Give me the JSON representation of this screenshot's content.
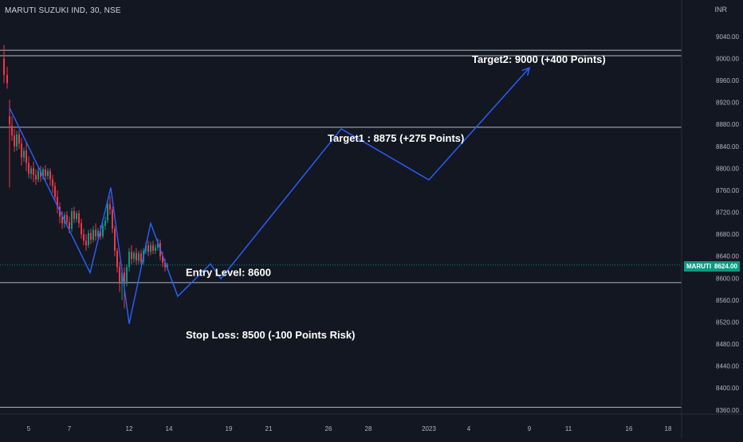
{
  "header": {
    "symbol_title": "MARUTI SUZUKI IND, 30, NSE",
    "currency": "INR"
  },
  "price_tag": {
    "ticker": "MARUTI",
    "value": "8624.00"
  },
  "colors": {
    "background": "#131722",
    "grid_line": "#d1d4dc",
    "projection_line": "#2962ff",
    "candle_up": "#089981",
    "candle_down": "#f23645",
    "axis_text": "#b2b5be",
    "current_price": "#089981"
  },
  "chart_data": {
    "type": "candlestick",
    "title": "MARUTI SUZUKI IND, 30, NSE",
    "y_axis": {
      "ticks": [
        9040,
        9000,
        8960,
        8920,
        8880,
        8840,
        8800,
        8760,
        8720,
        8680,
        8640,
        8600,
        8560,
        8520,
        8480,
        8440,
        8400,
        8360
      ],
      "tick_labels": [
        "9040.00",
        "9000.00",
        "8960.00",
        "8920.00",
        "8880.00",
        "8840.00",
        "8800.00",
        "8760.00",
        "8720.00",
        "8680.00",
        "8640.00",
        "8600.00",
        "8560.00",
        "8520.00",
        "8480.00",
        "8440.00",
        "8400.00",
        "8360.00"
      ],
      "range": [
        8350,
        9080
      ]
    },
    "x_axis": {
      "tick_labels": [
        "5",
        "7",
        "12",
        "14",
        "19",
        "21",
        "26",
        "28",
        "2023",
        "4",
        "9",
        "11",
        "16",
        "18"
      ]
    },
    "horizontal_levels": [
      9015,
      9005,
      8875,
      8624,
      8592,
      8365
    ],
    "annotations": [
      {
        "text": "Target2: 9000 (+400 Points)",
        "price": 8998
      },
      {
        "text": "Target1 : 8875 (+275 Points)",
        "price": 8854
      },
      {
        "text": "Entry Level: 8600",
        "price": 8610
      },
      {
        "text": "Stop Loss: 8500 (-100 Points Risk)",
        "price": 8496
      }
    ],
    "projection_path": [
      {
        "x": 12,
        "y": 8910
      },
      {
        "x": 113,
        "y": 8610
      },
      {
        "x": 139,
        "y": 8765
      },
      {
        "x": 162,
        "y": 8517
      },
      {
        "x": 189,
        "y": 8700
      },
      {
        "x": 223,
        "y": 8567
      },
      {
        "x": 264,
        "y": 8626
      },
      {
        "x": 277,
        "y": 8599
      },
      {
        "x": 428,
        "y": 8872
      },
      {
        "x": 538,
        "y": 8779
      },
      {
        "x": 664,
        "y": 8983
      }
    ],
    "candles": [
      {
        "x": 5,
        "o": 9000,
        "h": 9025,
        "c": 8970,
        "l": 8955
      },
      {
        "x": 9,
        "o": 8970,
        "h": 8985,
        "c": 8955,
        "l": 8945
      },
      {
        "x": 12,
        "o": 8895,
        "h": 8925,
        "c": 8880,
        "l": 8765
      },
      {
        "x": 15,
        "o": 8878,
        "h": 8895,
        "c": 8860,
        "l": 8850
      },
      {
        "x": 18,
        "o": 8860,
        "h": 8872,
        "c": 8840,
        "l": 8830
      },
      {
        "x": 21,
        "o": 8840,
        "h": 8868,
        "c": 8862,
        "l": 8832
      },
      {
        "x": 24,
        "o": 8862,
        "h": 8870,
        "c": 8845,
        "l": 8835
      },
      {
        "x": 27,
        "o": 8845,
        "h": 8855,
        "c": 8820,
        "l": 8805
      },
      {
        "x": 30,
        "o": 8820,
        "h": 8838,
        "c": 8832,
        "l": 8812
      },
      {
        "x": 33,
        "o": 8832,
        "h": 8848,
        "c": 8810,
        "l": 8795
      },
      {
        "x": 36,
        "o": 8810,
        "h": 8822,
        "c": 8790,
        "l": 8782
      },
      {
        "x": 39,
        "o": 8790,
        "h": 8805,
        "c": 8800,
        "l": 8780
      },
      {
        "x": 42,
        "o": 8800,
        "h": 8812,
        "c": 8788,
        "l": 8775
      },
      {
        "x": 45,
        "o": 8788,
        "h": 8798,
        "c": 8780,
        "l": 8770
      },
      {
        "x": 48,
        "o": 8780,
        "h": 8800,
        "c": 8795,
        "l": 8775
      },
      {
        "x": 51,
        "o": 8795,
        "h": 8805,
        "c": 8785,
        "l": 8776
      },
      {
        "x": 54,
        "o": 8785,
        "h": 8802,
        "c": 8798,
        "l": 8780
      },
      {
        "x": 57,
        "o": 8798,
        "h": 8806,
        "c": 8786,
        "l": 8778
      },
      {
        "x": 60,
        "o": 8786,
        "h": 8800,
        "c": 8795,
        "l": 8780
      },
      {
        "x": 63,
        "o": 8795,
        "h": 8800,
        "c": 8780,
        "l": 8768
      },
      {
        "x": 66,
        "o": 8780,
        "h": 8788,
        "c": 8768,
        "l": 8755
      },
      {
        "x": 69,
        "o": 8768,
        "h": 8775,
        "c": 8748,
        "l": 8740
      },
      {
        "x": 72,
        "o": 8748,
        "h": 8760,
        "c": 8730,
        "l": 8718
      },
      {
        "x": 75,
        "o": 8730,
        "h": 8738,
        "c": 8712,
        "l": 8700
      },
      {
        "x": 78,
        "o": 8712,
        "h": 8722,
        "c": 8700,
        "l": 8690
      },
      {
        "x": 81,
        "o": 8700,
        "h": 8720,
        "c": 8715,
        "l": 8692
      },
      {
        "x": 84,
        "o": 8715,
        "h": 8722,
        "c": 8702,
        "l": 8695
      },
      {
        "x": 87,
        "o": 8702,
        "h": 8712,
        "c": 8690,
        "l": 8682
      },
      {
        "x": 90,
        "o": 8690,
        "h": 8728,
        "c": 8722,
        "l": 8685
      },
      {
        "x": 93,
        "o": 8722,
        "h": 8730,
        "c": 8708,
        "l": 8700
      },
      {
        "x": 96,
        "o": 8708,
        "h": 8722,
        "c": 8718,
        "l": 8702
      },
      {
        "x": 99,
        "o": 8718,
        "h": 8724,
        "c": 8700,
        "l": 8692
      },
      {
        "x": 102,
        "o": 8700,
        "h": 8708,
        "c": 8680,
        "l": 8672
      },
      {
        "x": 105,
        "o": 8680,
        "h": 8690,
        "c": 8668,
        "l": 8660
      },
      {
        "x": 108,
        "o": 8668,
        "h": 8680,
        "c": 8660,
        "l": 8650
      },
      {
        "x": 111,
        "o": 8660,
        "h": 8688,
        "c": 8682,
        "l": 8655
      },
      {
        "x": 114,
        "o": 8682,
        "h": 8690,
        "c": 8670,
        "l": 8662
      },
      {
        "x": 117,
        "o": 8670,
        "h": 8695,
        "c": 8688,
        "l": 8665
      },
      {
        "x": 120,
        "o": 8688,
        "h": 8700,
        "c": 8676,
        "l": 8668
      },
      {
        "x": 123,
        "o": 8676,
        "h": 8692,
        "c": 8686,
        "l": 8670
      },
      {
        "x": 126,
        "o": 8686,
        "h": 8696,
        "c": 8676,
        "l": 8670
      },
      {
        "x": 129,
        "o": 8676,
        "h": 8700,
        "c": 8695,
        "l": 8672
      },
      {
        "x": 132,
        "o": 8695,
        "h": 8712,
        "c": 8705,
        "l": 8688
      },
      {
        "x": 135,
        "o": 8705,
        "h": 8740,
        "c": 8735,
        "l": 8700
      },
      {
        "x": 138,
        "o": 8735,
        "h": 8750,
        "c": 8725,
        "l": 8716
      },
      {
        "x": 141,
        "o": 8725,
        "h": 8730,
        "c": 8690,
        "l": 8682
      },
      {
        "x": 144,
        "o": 8690,
        "h": 8695,
        "c": 8650,
        "l": 8640
      },
      {
        "x": 147,
        "o": 8650,
        "h": 8655,
        "c": 8620,
        "l": 8610
      },
      {
        "x": 150,
        "o": 8620,
        "h": 8630,
        "c": 8590,
        "l": 8575
      },
      {
        "x": 153,
        "o": 8590,
        "h": 8615,
        "c": 8610,
        "l": 8560
      },
      {
        "x": 156,
        "o": 8610,
        "h": 8620,
        "c": 8590,
        "l": 8545
      },
      {
        "x": 159,
        "o": 8590,
        "h": 8625,
        "c": 8620,
        "l": 8585
      },
      {
        "x": 162,
        "o": 8620,
        "h": 8655,
        "c": 8648,
        "l": 8612
      },
      {
        "x": 165,
        "o": 8648,
        "h": 8660,
        "c": 8635,
        "l": 8625
      },
      {
        "x": 168,
        "o": 8635,
        "h": 8650,
        "c": 8646,
        "l": 8628
      },
      {
        "x": 171,
        "o": 8646,
        "h": 8655,
        "c": 8632,
        "l": 8625
      },
      {
        "x": 174,
        "o": 8632,
        "h": 8650,
        "c": 8645,
        "l": 8626
      },
      {
        "x": 177,
        "o": 8645,
        "h": 8652,
        "c": 8630,
        "l": 8624
      },
      {
        "x": 180,
        "o": 8630,
        "h": 8655,
        "c": 8650,
        "l": 8625
      },
      {
        "x": 183,
        "o": 8650,
        "h": 8665,
        "c": 8660,
        "l": 8644
      },
      {
        "x": 186,
        "o": 8660,
        "h": 8668,
        "c": 8648,
        "l": 8640
      },
      {
        "x": 189,
        "o": 8648,
        "h": 8666,
        "c": 8660,
        "l": 8642
      },
      {
        "x": 192,
        "o": 8660,
        "h": 8668,
        "c": 8650,
        "l": 8644
      },
      {
        "x": 195,
        "o": 8650,
        "h": 8662,
        "c": 8656,
        "l": 8644
      },
      {
        "x": 198,
        "o": 8656,
        "h": 8672,
        "c": 8664,
        "l": 8650
      },
      {
        "x": 201,
        "o": 8664,
        "h": 8670,
        "c": 8640,
        "l": 8632
      },
      {
        "x": 204,
        "o": 8640,
        "h": 8648,
        "c": 8628,
        "l": 8620
      },
      {
        "x": 207,
        "o": 8628,
        "h": 8635,
        "c": 8620,
        "l": 8612
      },
      {
        "x": 210,
        "o": 8620,
        "h": 8628,
        "c": 8624,
        "l": 8615
      }
    ]
  }
}
